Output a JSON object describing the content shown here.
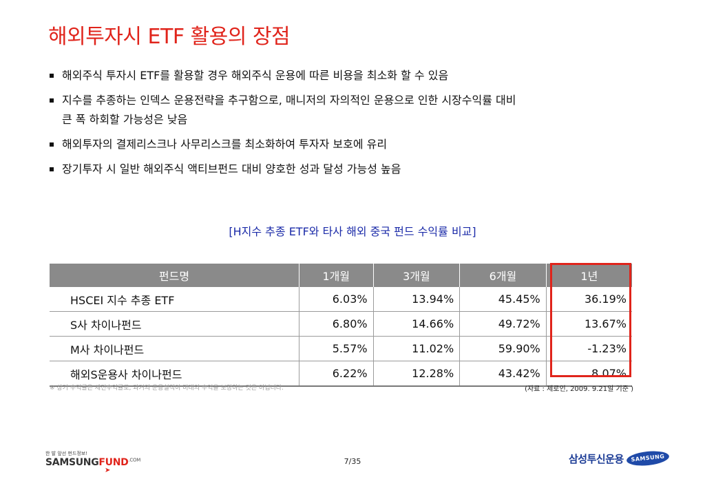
{
  "title": "해외투자시 ETF 활용의 장점",
  "bullets": [
    "해외주식 투자시 ETF를 활용할 경우 해외주식 운용에 따른 비용을 최소화 할 수 있음",
    "지수를 추종하는 인덱스 운용전략을 추구함으로, 매니저의 자의적인 운용으로 인한 시장수익률 대비",
    "큰 폭 하회할 가능성은 낮음",
    "해외투자의 결제리스크나 사무리스크를 최소화하여 투자자 보호에 유리",
    "장기투자 시 일반 해외주식 액티브펀드 대비 양호한 성과 달성 가능성 높음"
  ],
  "caption": "[H지수 추종 ETF와 타사 해외 중국 펀드 수익률 비교]",
  "table": {
    "headers": [
      "펀드명",
      "1개월",
      "3개월",
      "6개월",
      "1년"
    ],
    "rows": [
      [
        "HSCEI 지수 추종 ETF",
        "6.03%",
        "13.94%",
        "45.45%",
        "36.19%"
      ],
      [
        "S사 차이나펀드",
        "6.80%",
        "14.66%",
        "49.72%",
        "13.67%"
      ],
      [
        "M사 차이나펀드",
        "5.57%",
        "11.02%",
        "59.90%",
        "-1.23%"
      ],
      [
        "해외S운용사 차이나펀드",
        "6.22%",
        "12.28%",
        "43.42%",
        "8.07%"
      ]
    ]
  },
  "footnote_left": "※ 상기 수익률은 세전수익률로, 과거의 운용실적이 미래의 수익을 보장하는 것은 아닙니다.",
  "footnote_right": "(자료 : 제로인, 2009. 9.21일 기준 )",
  "footer": {
    "tagline": "한 발 앞선 펀드정보!",
    "brand_main": "SAMSUNG",
    "brand_accent": "FUND",
    "brand_suffix": ".COM",
    "page": "7/35",
    "company": "삼성투신운용",
    "samsung": "SAMSUNG"
  },
  "colors": {
    "accent": "#e0241b",
    "caption": "#1a2aa8",
    "header_bg": "#8a8a8a"
  }
}
